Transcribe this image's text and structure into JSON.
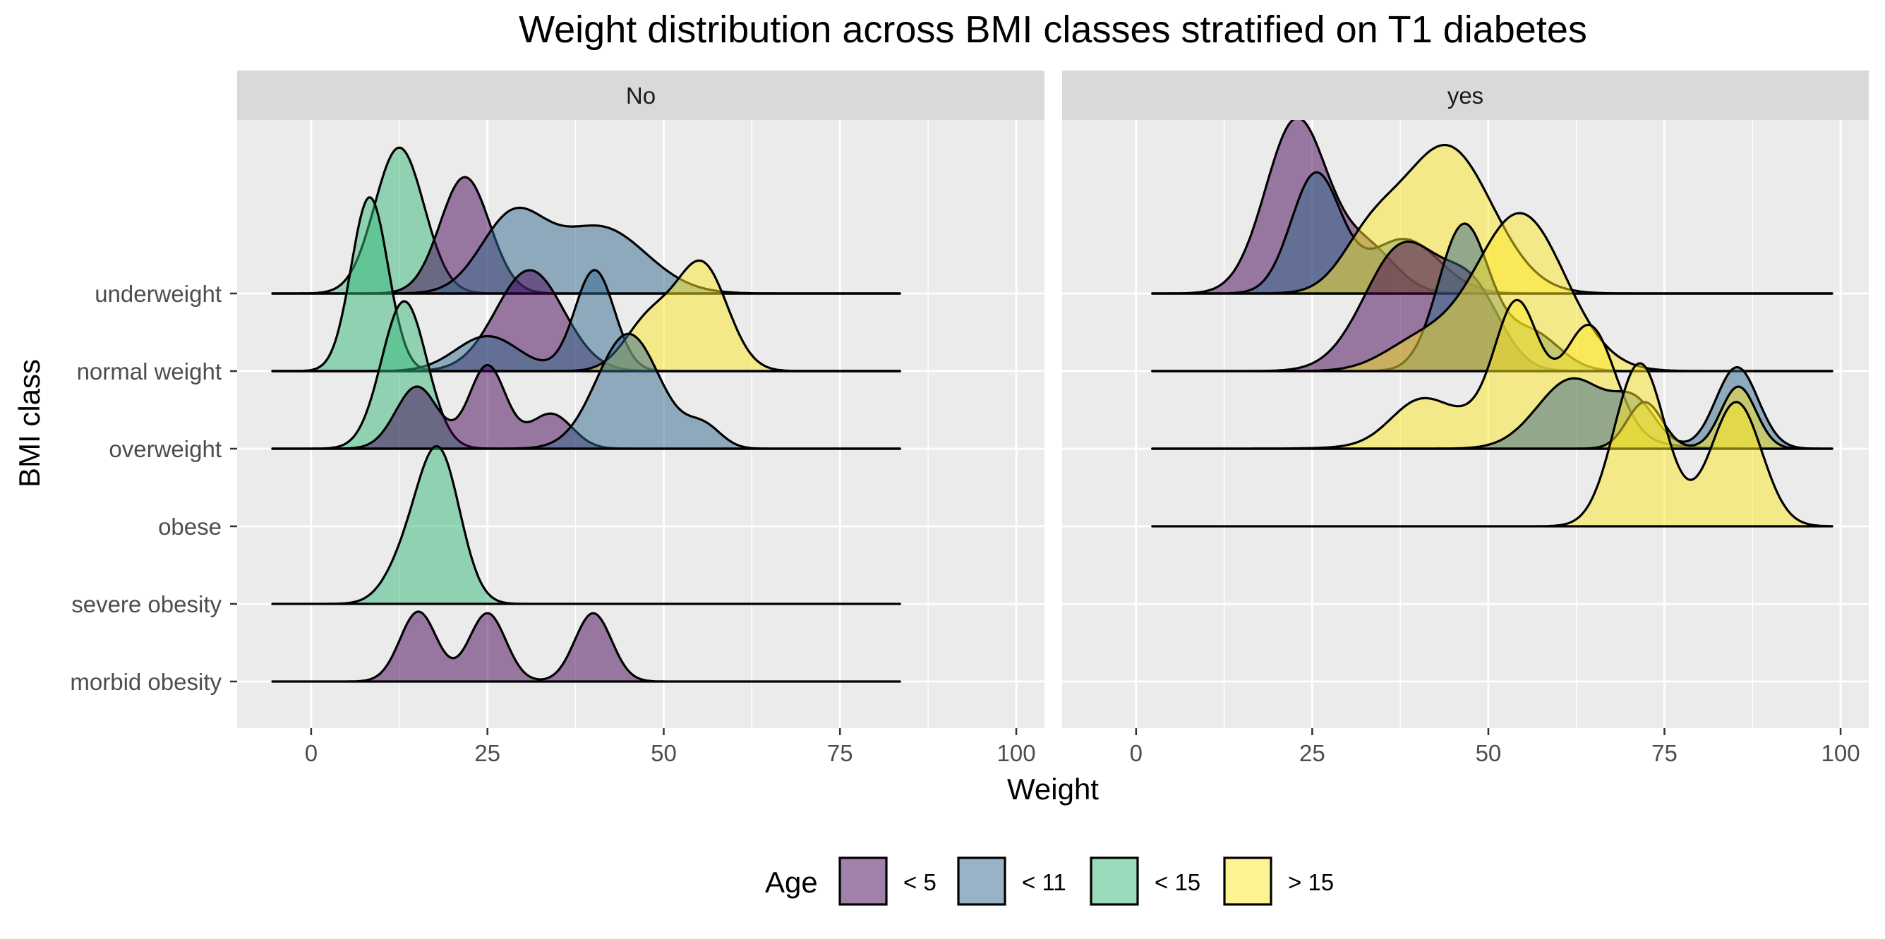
{
  "chart_data": {
    "type": "ridgeline",
    "title": "Weight distribution across BMI classes stratified on T1 diabetes",
    "xlabel": "Weight",
    "ylabel": "BMI class",
    "xlim": [
      -10.5,
      104
    ],
    "x_ticks": [
      0,
      25,
      50,
      75,
      100
    ],
    "categories": [
      "underweight",
      "normal weight",
      "overweight",
      "obese",
      "severe obesity",
      "morbid obesity"
    ],
    "legend": {
      "title": "Age",
      "placement": "bottom",
      "entries": [
        {
          "label": "< 5",
          "color": "#440154"
        },
        {
          "label": "< 11",
          "color": "#31688E"
        },
        {
          "label": "< 15",
          "color": "#35B779"
        },
        {
          "label": "> 15",
          "color": "#FDE725"
        }
      ]
    },
    "fill_alpha": 0.5,
    "panels": [
      {
        "label": "No",
        "x_range": [
          -5.5,
          83.5
        ],
        "ridges": [
          {
            "category": "underweight",
            "group": "< 15",
            "peaks": [
              [
                12.5,
                1.88,
                3.5
              ]
            ]
          },
          {
            "category": "underweight",
            "group": "< 5",
            "peaks": [
              [
                21.8,
                1.5,
                3.5
              ]
            ]
          },
          {
            "category": "underweight",
            "group": "< 11",
            "peaks": [
              [
                28.5,
                0.95,
                4.5
              ],
              [
                41,
                0.85,
                6.5
              ]
            ]
          },
          {
            "category": "normal weight",
            "group": "< 15",
            "peaks": [
              [
                8.3,
                2.24,
                2.6
              ]
            ]
          },
          {
            "category": "normal weight",
            "group": "< 5",
            "peaks": [
              [
                31,
                1.3,
                4.8
              ]
            ]
          },
          {
            "category": "normal weight",
            "group": "< 11",
            "peaks": [
              [
                25,
                0.45,
                4.5
              ],
              [
                40.2,
                1.3,
                2.8
              ]
            ]
          },
          {
            "category": "normal weight",
            "group": "> 15",
            "peaks": [
              [
                48,
                0.65,
                3.5
              ],
              [
                55.5,
                1.35,
                3.6
              ]
            ]
          },
          {
            "category": "overweight",
            "group": "< 15",
            "peaks": [
              [
                13.2,
                1.9,
                3.2
              ]
            ]
          },
          {
            "category": "overweight",
            "group": "< 5",
            "peaks": [
              [
                15,
                0.8,
                3
              ],
              [
                25,
                1.07,
                2.6
              ],
              [
                34,
                0.45,
                3
              ]
            ]
          },
          {
            "category": "overweight",
            "group": "< 11",
            "peaks": [
              [
                45,
                1.48,
                4.5
              ],
              [
                55.7,
                0.27,
                2.5
              ]
            ]
          },
          {
            "category": "severe obesity",
            "group": "< 15",
            "peaks": [
              [
                13.5,
                0.5,
                3
              ],
              [
                18.2,
                1.87,
                3
              ]
            ]
          },
          {
            "category": "morbid obesity",
            "group": "< 5",
            "peaks": [
              [
                15.2,
                0.9,
                2.6
              ],
              [
                25,
                0.88,
                2.6
              ],
              [
                40,
                0.88,
                2.6
              ]
            ]
          }
        ]
      },
      {
        "label": "yes",
        "x_range": [
          2.3,
          98.8
        ],
        "ridges": [
          {
            "category": "underweight",
            "group": "< 5",
            "peaks": [
              [
                22.8,
                2.24,
                4.4
              ],
              [
                33,
                0.55,
                4
              ]
            ]
          },
          {
            "category": "underweight",
            "group": "< 11",
            "peaks": [
              [
                25.5,
                1.53,
                3.5
              ],
              [
                38,
                0.7,
                5
              ]
            ]
          },
          {
            "category": "underweight",
            "group": "> 15",
            "peaks": [
              [
                33,
                0.55,
                4
              ],
              [
                44,
                1.9,
                6.5
              ]
            ]
          },
          {
            "category": "normal weight",
            "group": "< 5",
            "peaks": [
              [
                38,
                1.62,
                5.5
              ],
              [
                48,
                0.9,
                4
              ]
            ]
          },
          {
            "category": "normal weight",
            "group": "< 11",
            "peaks": [
              [
                46.5,
                1.87,
                3.6
              ],
              [
                56,
                0.5,
                4
              ]
            ]
          },
          {
            "category": "normal weight",
            "group": "> 15",
            "peaks": [
              [
                40,
                0.35,
                5
              ],
              [
                54.5,
                2.03,
                6.4
              ]
            ]
          },
          {
            "category": "overweight",
            "group": "> 15",
            "peaks": [
              [
                40,
                0.45,
                4
              ],
              [
                54,
                1.4,
                3
              ],
              [
                64.5,
                1.3,
                3.5
              ],
              [
                54,
                0.5,
                10
              ]
            ]
          },
          {
            "category": "overweight",
            "group": "< 11",
            "peaks": [
              [
                62,
                0.9,
                5
              ],
              [
                71,
                0.5,
                3
              ],
              [
                85.3,
                1.05,
                3
              ]
            ]
          },
          {
            "category": "overweight",
            "group": "> 15",
            "peaks": [
              [
                72.2,
                0.6,
                2.5
              ],
              [
                85.5,
                0.8,
                2.5
              ]
            ]
          },
          {
            "category": "obese",
            "group": "> 15",
            "peaks": [
              [
                71.5,
                2.1,
                3.6
              ],
              [
                85.2,
                1.6,
                3.6
              ]
            ]
          }
        ]
      }
    ]
  }
}
